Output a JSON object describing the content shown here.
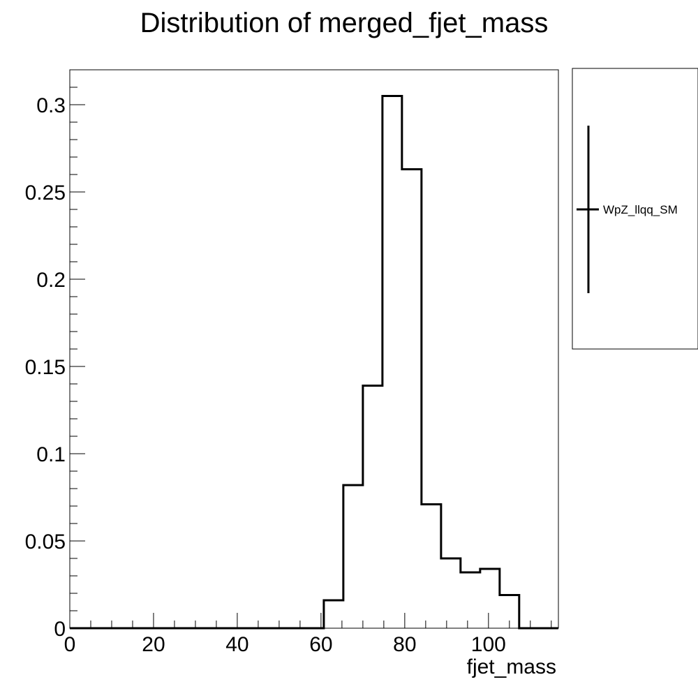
{
  "chart_data": {
    "type": "histogram",
    "title": "Distribution of merged_fjet_mass",
    "xlabel": "fjet_mass",
    "ylabel": "",
    "xlim": [
      0,
      116.7
    ],
    "ylim": [
      0,
      0.32
    ],
    "xticks": [
      0,
      20,
      40,
      60,
      80,
      100
    ],
    "xtick_labels": [
      "0",
      "20",
      "40",
      "60",
      "80",
      "100"
    ],
    "yticks": [
      0,
      0.05,
      0.1,
      0.15,
      0.2,
      0.25,
      0.3
    ],
    "ytick_labels": [
      "0",
      "0.05",
      "0.1",
      "0.15",
      "0.2",
      "0.25",
      "0.3"
    ],
    "bin_edges": [
      0,
      4.67,
      9.33,
      14,
      18.67,
      23.33,
      28,
      32.67,
      37.33,
      42,
      46.67,
      51.33,
      56,
      60.67,
      65.33,
      70,
      74.67,
      79.33,
      84,
      88.67,
      93.33,
      98,
      102.67,
      107.33,
      112,
      116.67
    ],
    "series": [
      {
        "name": "WpZ_llqq_SM",
        "values": [
          0,
          0,
          0,
          0,
          0,
          0,
          0,
          0,
          0,
          0,
          0,
          0,
          0,
          0.016,
          0.082,
          0.139,
          0.305,
          0.263,
          0.071,
          0.04,
          0.032,
          0.034,
          0.019,
          0,
          0
        ]
      }
    ],
    "legend": {
      "placement": "right",
      "entries": [
        "WpZ_llqq_SM"
      ]
    },
    "grid": false,
    "colors": {
      "line": "#000000",
      "background": "#ffffff"
    }
  }
}
